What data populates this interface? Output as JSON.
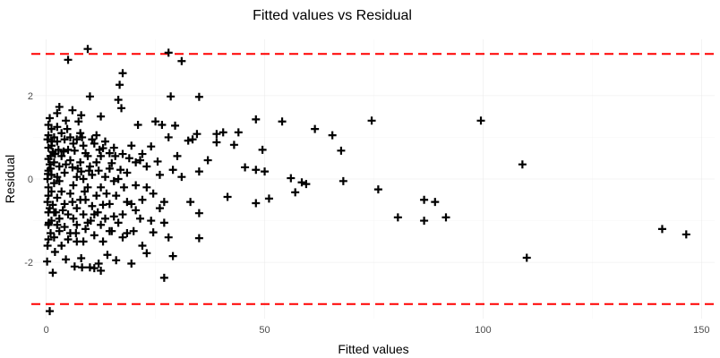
{
  "chart_data": {
    "type": "scatter",
    "title": "Fitted values vs Residual",
    "xlabel": "Fitted values",
    "ylabel": "Residual",
    "xlim": [
      -3,
      153
    ],
    "ylim": [
      -3.35,
      3.35
    ],
    "x_ticks": [
      0,
      50,
      100,
      150
    ],
    "y_ticks": [
      -2,
      0,
      2
    ],
    "grid": true,
    "marker": "plus",
    "reference_lines": [
      {
        "axis": "y",
        "value": 3,
        "color": "#ff0000",
        "style": "dashed"
      },
      {
        "axis": "y",
        "value": -3,
        "color": "#ff0000",
        "style": "dashed"
      }
    ],
    "points": [
      [
        9.5,
        3.12
      ],
      [
        28,
        3.03
      ],
      [
        5,
        2.86
      ],
      [
        31,
        2.83
      ],
      [
        17.5,
        2.54
      ],
      [
        16.8,
        2.26
      ],
      [
        35,
        1.97
      ],
      [
        28.5,
        1.98
      ],
      [
        10,
        1.98
      ],
      [
        16.5,
        1.9
      ],
      [
        2.5,
        1.58
      ],
      [
        17.2,
        1.7
      ],
      [
        12.5,
        1.5
      ],
      [
        8,
        1.53
      ],
      [
        3,
        1.73
      ],
      [
        6,
        1.65
      ],
      [
        0.8,
        1.46
      ],
      [
        4.5,
        1.4
      ],
      [
        7.4,
        1.38
      ],
      [
        21,
        1.3
      ],
      [
        25,
        1.38
      ],
      [
        26.5,
        1.3
      ],
      [
        29.5,
        1.28
      ],
      [
        34.5,
        1.08
      ],
      [
        39,
        1.08
      ],
      [
        40.5,
        1.12
      ],
      [
        44,
        1.12
      ],
      [
        48,
        1.43
      ],
      [
        54,
        1.38
      ],
      [
        61.5,
        1.2
      ],
      [
        65.5,
        1.05
      ],
      [
        74.5,
        1.4
      ],
      [
        99.5,
        1.4
      ],
      [
        67.5,
        0.68
      ],
      [
        49.5,
        0.7
      ],
      [
        43,
        0.82
      ],
      [
        39,
        0.88
      ],
      [
        33.5,
        0.95
      ],
      [
        32.5,
        0.92
      ],
      [
        28,
        1.0
      ],
      [
        24,
        0.78
      ],
      [
        22,
        0.6
      ],
      [
        19,
        0.5
      ],
      [
        14.5,
        0.62
      ],
      [
        13,
        0.74
      ],
      [
        11,
        0.85
      ],
      [
        9,
        0.62
      ],
      [
        6.5,
        0.68
      ],
      [
        4,
        0.66
      ],
      [
        2,
        0.6
      ],
      [
        1,
        0.55
      ],
      [
        0.5,
        0.48
      ],
      [
        30,
        0.55
      ],
      [
        37,
        0.45
      ],
      [
        45.5,
        0.28
      ],
      [
        48,
        0.22
      ],
      [
        50,
        0.18
      ],
      [
        35,
        0.18
      ],
      [
        29,
        0.22
      ],
      [
        25.5,
        0.42
      ],
      [
        23,
        0.3
      ],
      [
        20.5,
        0.4
      ],
      [
        17,
        0.22
      ],
      [
        15,
        0.38
      ],
      [
        12,
        0.2
      ],
      [
        10,
        0.3
      ],
      [
        8,
        0.18
      ],
      [
        6,
        0.28
      ],
      [
        3,
        0.3
      ],
      [
        1,
        0.25
      ],
      [
        0.4,
        0.12
      ],
      [
        109,
        0.35
      ],
      [
        56,
        0.02
      ],
      [
        58.5,
        -0.08
      ],
      [
        59.5,
        -0.12
      ],
      [
        57,
        -0.32
      ],
      [
        68,
        -0.05
      ],
      [
        76,
        -0.25
      ],
      [
        48,
        -0.58
      ],
      [
        51,
        -0.47
      ],
      [
        41.5,
        -0.43
      ],
      [
        35,
        -0.82
      ],
      [
        27,
        -0.55
      ],
      [
        24.5,
        -0.35
      ],
      [
        22,
        -0.5
      ],
      [
        20.5,
        -0.75
      ],
      [
        18.5,
        -0.55
      ],
      [
        16,
        -0.4
      ],
      [
        13,
        -0.62
      ],
      [
        11,
        -0.85
      ],
      [
        9,
        -0.5
      ],
      [
        7,
        -0.7
      ],
      [
        5,
        -0.85
      ],
      [
        3,
        -0.95
      ],
      [
        1.5,
        -0.62
      ],
      [
        0.5,
        -0.4
      ],
      [
        80.5,
        -0.92
      ],
      [
        86.5,
        -1.0
      ],
      [
        86.5,
        -0.5
      ],
      [
        89,
        -0.55
      ],
      [
        91.5,
        -0.92
      ],
      [
        141,
        -1.2
      ],
      [
        146.5,
        -1.33
      ],
      [
        110,
        -1.89
      ],
      [
        35,
        -1.42
      ],
      [
        27,
        -1.05
      ],
      [
        24.5,
        -1.28
      ],
      [
        22,
        -1.6
      ],
      [
        20,
        -1.25
      ],
      [
        17.5,
        -1.4
      ],
      [
        15,
        -1.25
      ],
      [
        13,
        -1.5
      ],
      [
        11,
        -1.35
      ],
      [
        9,
        -1.2
      ],
      [
        7,
        -1.5
      ],
      [
        5,
        -1.45
      ],
      [
        3,
        -1.25
      ],
      [
        1,
        -1.3
      ],
      [
        0.3,
        -1.6
      ],
      [
        23,
        -1.78
      ],
      [
        29,
        -1.85
      ],
      [
        19.5,
        -2.03
      ],
      [
        16,
        -1.95
      ],
      [
        12,
        -2.03
      ],
      [
        10,
        -2.12
      ],
      [
        8,
        -1.9
      ],
      [
        6.5,
        -2.1
      ],
      [
        4.5,
        -1.93
      ],
      [
        2,
        -1.75
      ],
      [
        0.2,
        -1.98
      ],
      [
        27,
        -2.37
      ],
      [
        12.5,
        -2.2
      ],
      [
        11,
        -2.14
      ],
      [
        0.8,
        -3.17
      ],
      [
        8.2,
        -2.12
      ],
      [
        14,
        -1.82
      ],
      [
        1.5,
        -2.25
      ],
      [
        0.5,
        -1.45
      ],
      [
        0.5,
        -1.1
      ],
      [
        0.5,
        -0.8
      ],
      [
        0.5,
        -0.2
      ],
      [
        0.5,
        0.2
      ],
      [
        0.5,
        0.75
      ],
      [
        0.5,
        1.05
      ],
      [
        0.5,
        1.3
      ],
      [
        0.3,
        -0.55
      ],
      [
        0.3,
        0.0
      ],
      [
        0.3,
        0.95
      ],
      [
        1.2,
        -1.0
      ],
      [
        1.2,
        -0.3
      ],
      [
        1.2,
        0.1
      ],
      [
        1.2,
        0.8
      ],
      [
        1.2,
        1.2
      ],
      [
        1.8,
        -1.4
      ],
      [
        1.8,
        -0.8
      ],
      [
        1.8,
        -0.1
      ],
      [
        1.8,
        0.4
      ],
      [
        1.8,
        1.0
      ],
      [
        2.5,
        -1.1
      ],
      [
        2.5,
        -0.45
      ],
      [
        2.5,
        0.05
      ],
      [
        2.5,
        0.9
      ],
      [
        2.5,
        1.25
      ],
      [
        3.5,
        -1.6
      ],
      [
        3.5,
        -0.3
      ],
      [
        3.5,
        0.55
      ],
      [
        3.5,
        1.1
      ],
      [
        4.2,
        -1.15
      ],
      [
        4.2,
        -0.6
      ],
      [
        4.2,
        0.15
      ],
      [
        4.2,
        0.95
      ],
      [
        5.5,
        -1.3
      ],
      [
        5.5,
        -0.35
      ],
      [
        5.5,
        0.45
      ],
      [
        5.5,
        1.0
      ],
      [
        6.2,
        -0.95
      ],
      [
        6.2,
        -0.15
      ],
      [
        6.2,
        0.85
      ],
      [
        7,
        -1.1
      ],
      [
        7,
        0.05
      ],
      [
        7,
        0.95
      ],
      [
        7.8,
        -0.5
      ],
      [
        7.8,
        0.4
      ],
      [
        7.8,
        1.1
      ],
      [
        8.5,
        -1.5
      ],
      [
        8.5,
        -0.85
      ],
      [
        8.5,
        0.0
      ],
      [
        8.5,
        0.8
      ],
      [
        9.5,
        -1.05
      ],
      [
        9.5,
        -0.2
      ],
      [
        9.5,
        0.55
      ],
      [
        10.5,
        -0.65
      ],
      [
        10.5,
        0.1
      ],
      [
        10.5,
        0.95
      ],
      [
        11.5,
        -0.4
      ],
      [
        11.5,
        0.4
      ],
      [
        11.5,
        1.05
      ],
      [
        12.5,
        -1.1
      ],
      [
        12.5,
        -0.2
      ],
      [
        12.5,
        0.55
      ],
      [
        13.5,
        -0.95
      ],
      [
        13.5,
        0.05
      ],
      [
        13.5,
        0.9
      ],
      [
        14.5,
        -1.25
      ],
      [
        14.5,
        -0.6
      ],
      [
        14.5,
        0.25
      ],
      [
        15.5,
        -0.9
      ],
      [
        15.5,
        -0.05
      ],
      [
        15.5,
        0.75
      ],
      [
        16.5,
        -1.05
      ],
      [
        16.5,
        0.0
      ],
      [
        17.5,
        -0.85
      ],
      [
        17.5,
        0.6
      ],
      [
        18.5,
        -1.3
      ],
      [
        18.5,
        0.15
      ],
      [
        19.5,
        -0.6
      ],
      [
        19.5,
        0.8
      ],
      [
        20.5,
        -0.15
      ],
      [
        21.5,
        -0.95
      ],
      [
        21.5,
        0.45
      ],
      [
        23,
        -0.2
      ],
      [
        24,
        -1.0
      ],
      [
        26,
        -0.7
      ],
      [
        26,
        0.1
      ],
      [
        28,
        -1.4
      ],
      [
        31,
        0.05
      ],
      [
        33,
        -0.55
      ],
      [
        0.8,
        0.35
      ],
      [
        0.8,
        -0.7
      ],
      [
        1.5,
        0.65
      ],
      [
        2.2,
        -0.8
      ],
      [
        3,
        -0.05
      ],
      [
        4.5,
        0.35
      ],
      [
        5,
        0.7
      ],
      [
        6,
        -0.55
      ],
      [
        7.2,
        0.25
      ],
      [
        8.8,
        -0.3
      ],
      [
        9.8,
        0.2
      ],
      [
        11.8,
        -0.8
      ],
      [
        13.8,
        -0.35
      ],
      [
        15.8,
        0.55
      ],
      [
        17.8,
        -0.2
      ],
      [
        0.6,
        -1.05
      ],
      [
        1.3,
        0.9
      ],
      [
        2.8,
        0.7
      ],
      [
        3.8,
        -0.75
      ],
      [
        4.8,
        1.2
      ],
      [
        6.8,
        -1.3
      ],
      [
        8.2,
        1.0
      ],
      [
        10.2,
        -1.0
      ],
      [
        12.2,
        0.7
      ]
    ]
  }
}
